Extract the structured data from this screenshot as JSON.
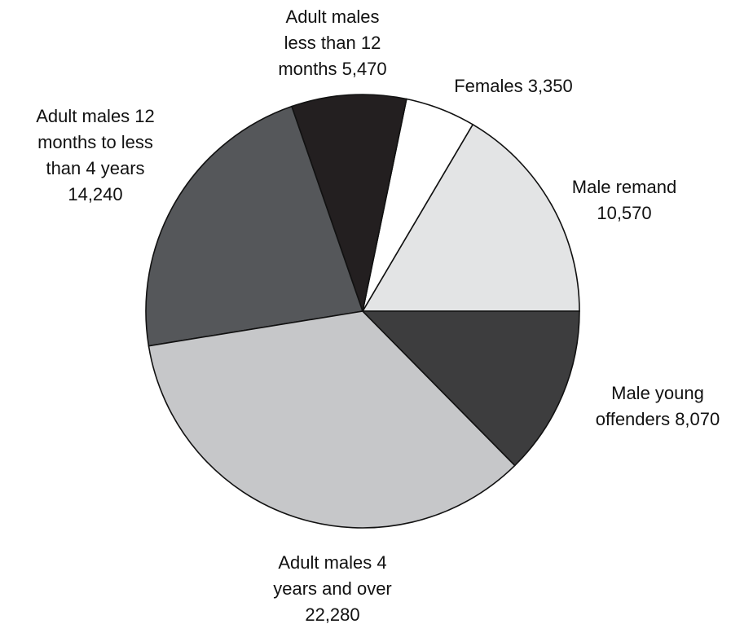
{
  "chart_data": {
    "type": "pie",
    "title": "",
    "start_angle_deg": 0,
    "direction": "counterclockwise",
    "slices": [
      {
        "label": "Male remand",
        "value": 10570,
        "label_lines": [
          "Male remand",
          "10,570"
        ],
        "color": "#e3e4e5"
      },
      {
        "label": "Females",
        "value": 3350,
        "label_lines": [
          "Females 3,350"
        ],
        "color": "#ffffff"
      },
      {
        "label": "Adult males less than 12 months",
        "value": 5470,
        "label_lines": [
          "Adult males",
          "less than 12",
          "months 5,470"
        ],
        "color": "#231f20"
      },
      {
        "label": "Adult males 12 months to less than 4 years",
        "value": 14240,
        "label_lines": [
          "Adult males 12",
          "months to less",
          "than 4 years",
          "14,240"
        ],
        "color": "#55575a"
      },
      {
        "label": "Adult males 4 years and over",
        "value": 22280,
        "label_lines": [
          "Adult males 4",
          "years and over",
          "22,280"
        ],
        "color": "#c6c7c9"
      },
      {
        "label": "Male young offenders",
        "value": 8070,
        "label_lines": [
          "Male young",
          "offenders 8,070"
        ],
        "color": "#3d3d3e"
      }
    ]
  }
}
